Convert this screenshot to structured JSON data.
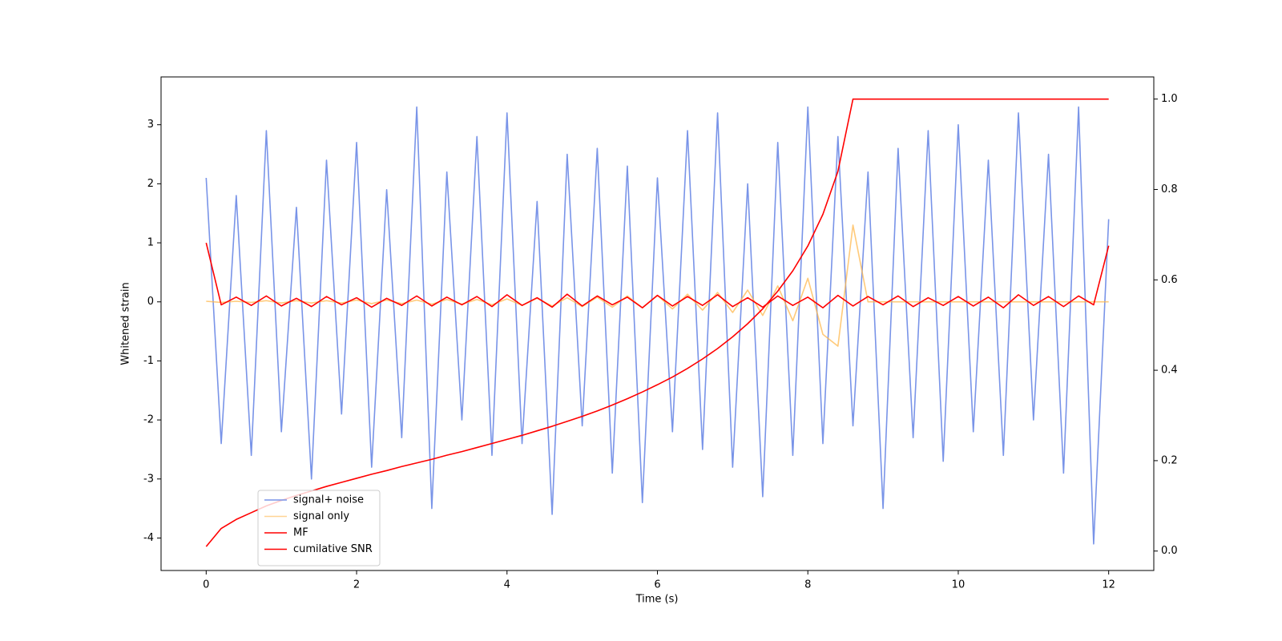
{
  "chart_data": {
    "type": "line",
    "xlabel": "Time (s)",
    "ylabel": "Whitened strain",
    "x": [
      0,
      0.2,
      0.4,
      0.6,
      0.8,
      1.0,
      1.2,
      1.4,
      1.6,
      1.8,
      2.0,
      2.2,
      2.4,
      2.6,
      2.8,
      3.0,
      3.2,
      3.4,
      3.6,
      3.8,
      4.0,
      4.2,
      4.4,
      4.6,
      4.8,
      5.0,
      5.2,
      5.4,
      5.6,
      5.8,
      6.0,
      6.2,
      6.4,
      6.6,
      6.8,
      7.0,
      7.2,
      7.4,
      7.6,
      7.8,
      8.0,
      8.2,
      8.4,
      8.6,
      8.8,
      9.0,
      9.2,
      9.4,
      9.6,
      9.8,
      10.0,
      10.2,
      10.4,
      10.6,
      10.8,
      11.0,
      11.2,
      11.4,
      11.6,
      11.8,
      12.0
    ],
    "series": [
      {
        "name": "signal+ noise",
        "color": "#7994e8",
        "values": [
          2.1,
          -2.4,
          1.8,
          -2.6,
          2.9,
          -2.2,
          1.6,
          -3.0,
          2.4,
          -1.9,
          2.7,
          -2.8,
          1.9,
          -2.3,
          3.3,
          -3.5,
          2.2,
          -2.0,
          2.8,
          -2.6,
          3.2,
          -2.4,
          1.7,
          -3.6,
          2.5,
          -2.1,
          2.6,
          -2.9,
          2.3,
          -3.4,
          2.1,
          -2.2,
          2.9,
          -2.5,
          3.2,
          -2.8,
          2.0,
          -3.3,
          2.7,
          -2.6,
          3.3,
          -2.4,
          2.8,
          -2.1,
          2.2,
          -3.5,
          2.6,
          -2.3,
          2.9,
          -2.7,
          3.0,
          -2.2,
          2.4,
          -2.6,
          3.2,
          -2.0,
          2.5,
          -2.9,
          3.3,
          -4.1,
          1.4
        ]
      },
      {
        "name": "signal only",
        "color": "#ffb84d",
        "values": [
          0.01,
          -0.01,
          0.01,
          -0.01,
          0.02,
          -0.02,
          0.02,
          -0.02,
          0.02,
          -0.02,
          0.03,
          -0.03,
          0.03,
          -0.03,
          0.03,
          -0.04,
          0.04,
          -0.04,
          0.04,
          -0.05,
          0.05,
          -0.06,
          0.06,
          -0.07,
          0.07,
          -0.08,
          0.08,
          -0.09,
          0.1,
          -0.1,
          0.11,
          -0.12,
          0.13,
          -0.14,
          0.16,
          -0.18,
          0.2,
          -0.23,
          0.27,
          -0.32,
          0.4,
          -0.55,
          -0.75,
          1.3,
          0,
          0,
          0,
          0,
          0,
          0,
          0,
          0,
          0,
          0,
          0,
          0,
          0,
          0,
          0,
          0,
          0
        ]
      },
      {
        "name": "MF",
        "color": "#ff0000",
        "values": [
          1.0,
          -0.05,
          0.08,
          -0.06,
          0.1,
          -0.07,
          0.06,
          -0.08,
          0.09,
          -0.05,
          0.07,
          -0.09,
          0.06,
          -0.06,
          0.1,
          -0.07,
          0.08,
          -0.05,
          0.09,
          -0.08,
          0.12,
          -0.06,
          0.07,
          -0.09,
          0.13,
          -0.07,
          0.1,
          -0.05,
          0.08,
          -0.1,
          0.11,
          -0.07,
          0.09,
          -0.06,
          0.12,
          -0.08,
          0.07,
          -0.09,
          0.1,
          -0.06,
          0.08,
          -0.1,
          0.11,
          -0.07,
          0.09,
          -0.05,
          0.1,
          -0.08,
          0.07,
          -0.06,
          0.09,
          -0.07,
          0.08,
          -0.1,
          0.12,
          -0.06,
          0.09,
          -0.08,
          0.1,
          -0.05,
          0.95
        ]
      },
      {
        "name": "cumilative SNR",
        "color": "#ff0000",
        "axis": "y2",
        "values": [
          0.01,
          0.05,
          0.07,
          0.085,
          0.1,
          0.112,
          0.123,
          0.133,
          0.143,
          0.152,
          0.161,
          0.17,
          0.178,
          0.187,
          0.195,
          0.203,
          0.212,
          0.22,
          0.229,
          0.238,
          0.247,
          0.256,
          0.266,
          0.276,
          0.287,
          0.298,
          0.31,
          0.323,
          0.337,
          0.352,
          0.368,
          0.385,
          0.404,
          0.425,
          0.448,
          0.474,
          0.503,
          0.536,
          0.575,
          0.62,
          0.675,
          0.745,
          0.84,
          1.0,
          1.0,
          1.0,
          1.0,
          1.0,
          1.0,
          1.0,
          1.0,
          1.0,
          1.0,
          1.0,
          1.0,
          1.0,
          1.0,
          1.0,
          1.0,
          1.0,
          1.0
        ]
      }
    ],
    "xlim": [
      -0.6,
      12.6
    ],
    "xticks": [
      0,
      2,
      4,
      6,
      8,
      10,
      12
    ],
    "ylim": [
      -4.55,
      3.81
    ],
    "yticks": [
      -4,
      -3,
      -2,
      -1,
      0,
      1,
      2,
      3
    ],
    "y2lim": [
      -0.043,
      1.049
    ],
    "y2ticks": [
      {
        "value": 0,
        "label": "0.0"
      },
      0.2,
      0.4,
      0.6,
      0.8,
      {
        "value": 1,
        "label": "1.0"
      }
    ],
    "legend": "lower left"
  }
}
